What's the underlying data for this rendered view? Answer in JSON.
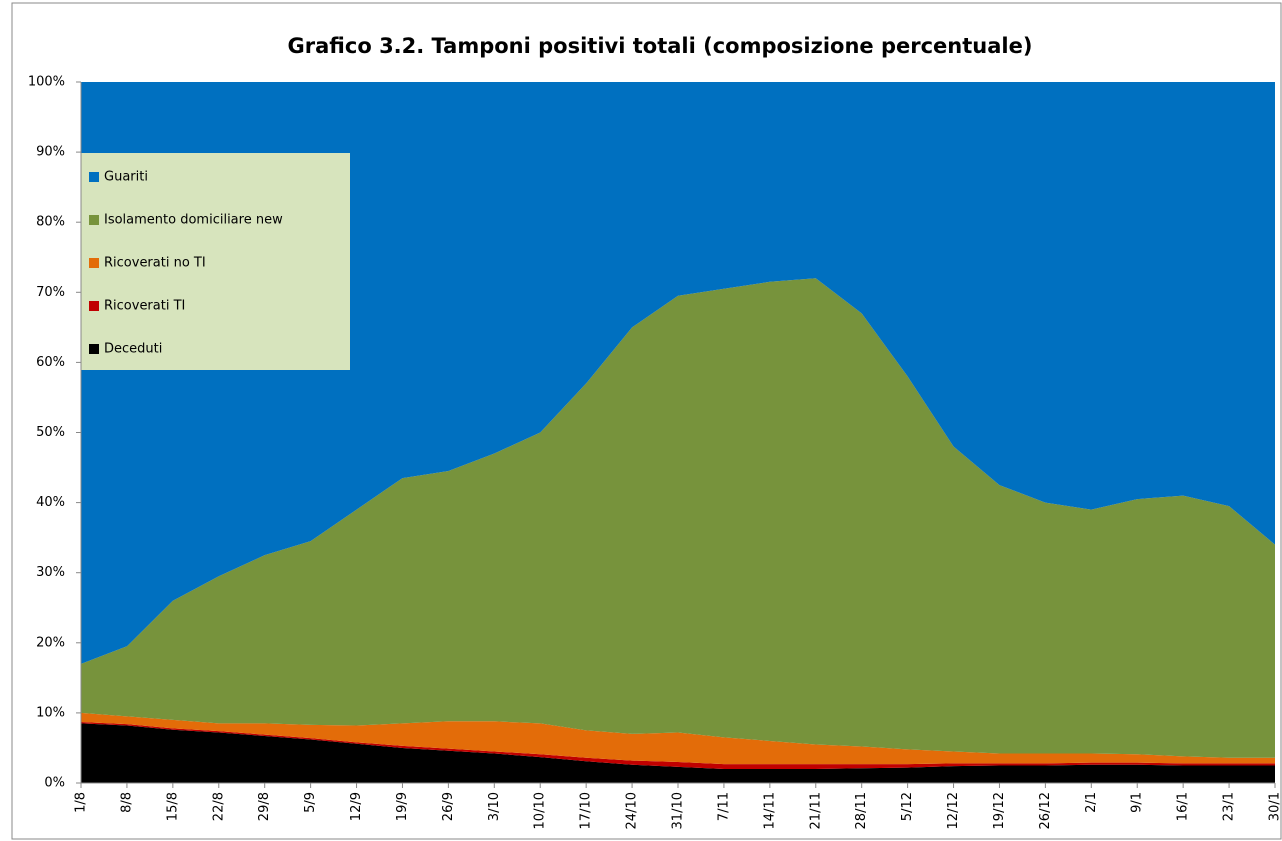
{
  "chart_data": {
    "type": "stacked_area",
    "title": "Grafico 3.2. Tamponi positivi totali (composizione percentuale)",
    "categories": [
      "1/8",
      "8/8",
      "15/8",
      "22/8",
      "29/8",
      "5/9",
      "12/9",
      "19/9",
      "26/9",
      "3/10",
      "10/10",
      "17/10",
      "24/10",
      "31/10",
      "7/11",
      "14/11",
      "21/11",
      "28/11",
      "5/12",
      "12/12",
      "19/12",
      "26/12",
      "2/1",
      "9/1",
      "16/1",
      "23/1",
      "30/1"
    ],
    "series": [
      {
        "name": "Deceduti",
        "color": "#000000",
        "values": [
          8.5,
          8.2,
          7.6,
          7.2,
          6.7,
          6.2,
          5.6,
          5.0,
          4.6,
          4.2,
          3.7,
          3.1,
          2.6,
          2.3,
          2.0,
          2.0,
          2.0,
          2.1,
          2.2,
          2.4,
          2.5,
          2.5,
          2.6,
          2.6,
          2.5,
          2.5,
          2.5
        ]
      },
      {
        "name": "Ricoverati TI",
        "color": "#c00000",
        "values": [
          0.2,
          0.2,
          0.2,
          0.2,
          0.2,
          0.2,
          0.2,
          0.3,
          0.3,
          0.3,
          0.4,
          0.5,
          0.6,
          0.7,
          0.7,
          0.7,
          0.7,
          0.6,
          0.5,
          0.4,
          0.3,
          0.3,
          0.3,
          0.3,
          0.3,
          0.3,
          0.3
        ]
      },
      {
        "name": "Ricoverati no TI",
        "color": "#e36c09",
        "values": [
          1.3,
          1.1,
          1.2,
          1.1,
          1.6,
          1.9,
          2.4,
          3.2,
          3.9,
          4.3,
          4.4,
          3.9,
          3.8,
          4.2,
          3.8,
          3.3,
          2.8,
          2.5,
          2.1,
          1.7,
          1.4,
          1.4,
          1.3,
          1.2,
          1.0,
          0.8,
          0.8
        ]
      },
      {
        "name": "Isolamento domiciliare new",
        "color": "#77933c",
        "values": [
          7,
          10,
          17,
          21,
          24,
          26.2,
          30.8,
          35,
          35.7,
          38.2,
          41.5,
          49.5,
          58,
          62.3,
          64,
          65.5,
          66.5,
          61.8,
          53.2,
          43.5,
          38.3,
          35.8,
          34.8,
          36.4,
          37.2,
          35.9,
          30.4
        ]
      },
      {
        "name": "Guariti",
        "color": "#0070c0",
        "values": [
          83,
          80.5,
          74,
          70.5,
          67.5,
          65.5,
          61,
          56.5,
          55.5,
          53,
          50,
          43,
          35,
          30.5,
          29.5,
          28.5,
          28,
          33,
          42,
          52,
          57.5,
          60,
          61,
          59.5,
          59,
          60.5,
          66
        ]
      }
    ],
    "ylim": [
      0,
      100
    ],
    "yticks": [
      {
        "value": 0,
        "label": "0%"
      },
      {
        "value": 10,
        "label": "10%"
      },
      {
        "value": 20,
        "label": "20%"
      },
      {
        "value": 30,
        "label": "30%"
      },
      {
        "value": 40,
        "label": "40%"
      },
      {
        "value": 50,
        "label": "50%"
      },
      {
        "value": 60,
        "label": "60%"
      },
      {
        "value": 70,
        "label": "70%"
      },
      {
        "value": 80,
        "label": "80%"
      },
      {
        "value": 90,
        "label": "90%"
      },
      {
        "value": 100,
        "label": "100%"
      }
    ],
    "legend": "upper left"
  }
}
